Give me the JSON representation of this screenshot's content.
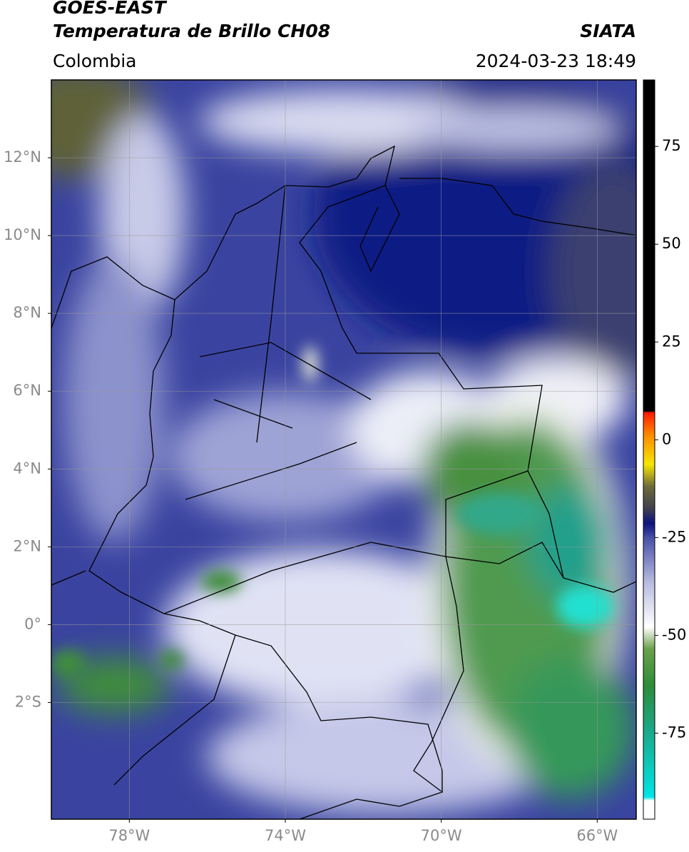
{
  "header": {
    "title": "GOES-EAST",
    "subtitle": "Temperatura de Brillo CH08",
    "source": "SIATA",
    "region": "Colombia",
    "timestamp": "2024-03-23 18:49"
  },
  "map": {
    "lon_range": [
      -80,
      -65
    ],
    "lat_range": [
      -5,
      14
    ],
    "lat_ticks": [
      {
        "value": 12,
        "label": "12°N"
      },
      {
        "value": 10,
        "label": "10°N"
      },
      {
        "value": 8,
        "label": "8°N"
      },
      {
        "value": 6,
        "label": "6°N"
      },
      {
        "value": 4,
        "label": "4°N"
      },
      {
        "value": 2,
        "label": "2°N"
      },
      {
        "value": 0,
        "label": "0°"
      },
      {
        "value": -2,
        "label": "2°S"
      }
    ],
    "lon_ticks": [
      {
        "value": -78,
        "label": "78°W"
      },
      {
        "value": -74,
        "label": "74°W"
      },
      {
        "value": -70,
        "label": "70°W"
      },
      {
        "value": -66,
        "label": "66°W"
      }
    ],
    "grid": true
  },
  "colorbar": {
    "range": [
      -97,
      92
    ],
    "ticks": [
      75,
      50,
      25,
      0,
      -25,
      -50,
      -75
    ]
  }
}
